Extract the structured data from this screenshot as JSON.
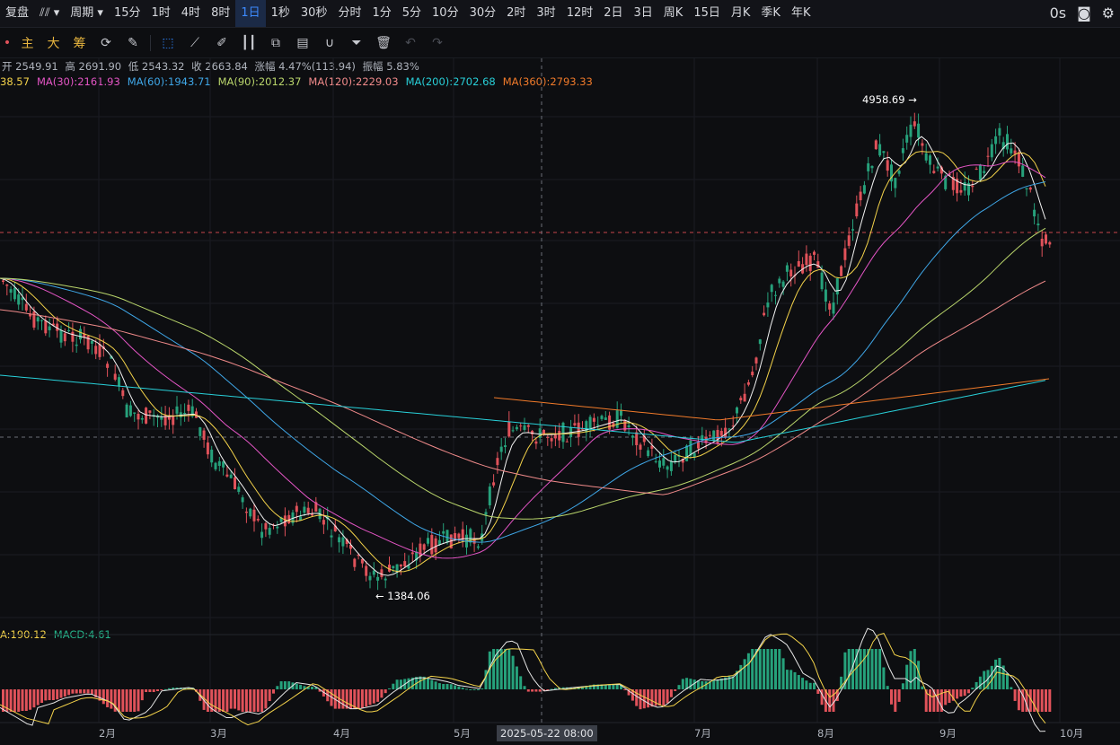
{
  "topbar": {
    "items": [
      "复盘",
      "⫽⫽ ▾",
      "周期 ▾",
      "15分",
      "1时",
      "4时",
      "8时",
      "1日",
      "1秒",
      "30秒",
      "分时",
      "1分",
      "5分",
      "10分",
      "30分",
      "2时",
      "3时",
      "12时",
      "2日",
      "3日",
      "周K",
      "15日",
      "月K",
      "季K",
      "年K"
    ],
    "active_index": 7,
    "right_text": "0s"
  },
  "toolbar": {
    "gold_labels": [
      "主",
      "大",
      "筹"
    ],
    "icons": [
      "refresh-icon",
      "ruler-pen-icon",
      "cursor-select-icon",
      "measure-ruler-icon",
      "draw-pen-icon",
      "candlestick-icon",
      "copy-icon",
      "note-edit-icon",
      "magnet-icon",
      "filter-icon",
      "trash-icon",
      "undo-icon",
      "redo-icon"
    ]
  },
  "ohlc": {
    "open": "开 2549.91",
    "high": "高 2691.90",
    "low": "低 2543.32",
    "close": "收 2663.84",
    "change": "涨幅 4.47%(113.94)",
    "amplitude": "振幅 5.83%"
  },
  "ma_legend": [
    {
      "text": "38.57",
      "color": "#f3d24a"
    },
    {
      "text": "MA(30):2161.93",
      "color": "#e455c5"
    },
    {
      "text": "MA(60):1943.71",
      "color": "#3fa7e8"
    },
    {
      "text": "MA(90):2012.37",
      "color": "#b9d56b"
    },
    {
      "text": "MA(120):2229.03",
      "color": "#f08a8a"
    },
    {
      "text": "MA(200):2702.68",
      "color": "#28cfd8"
    },
    {
      "text": "MA(360):2793.33",
      "color": "#f07a2a"
    }
  ],
  "macd_legend": [
    {
      "text": "A:190.12",
      "color": "#f3d24a"
    },
    {
      "text": "MACD:4.61",
      "color": "#26b38a"
    }
  ],
  "annotations": {
    "high": "4958.69 →",
    "low": "← 1384.06"
  },
  "crosshair_date": "2025-05-22 08:00",
  "x_axis": [
    "2月",
    "3月",
    "4月",
    "5月",
    "7月",
    "8月",
    "9月",
    "10月"
  ],
  "colors": {
    "up": "#26a17b",
    "down": "#e0525a",
    "bg": "#0d0e11",
    "accent": "#3d8bff"
  }
}
